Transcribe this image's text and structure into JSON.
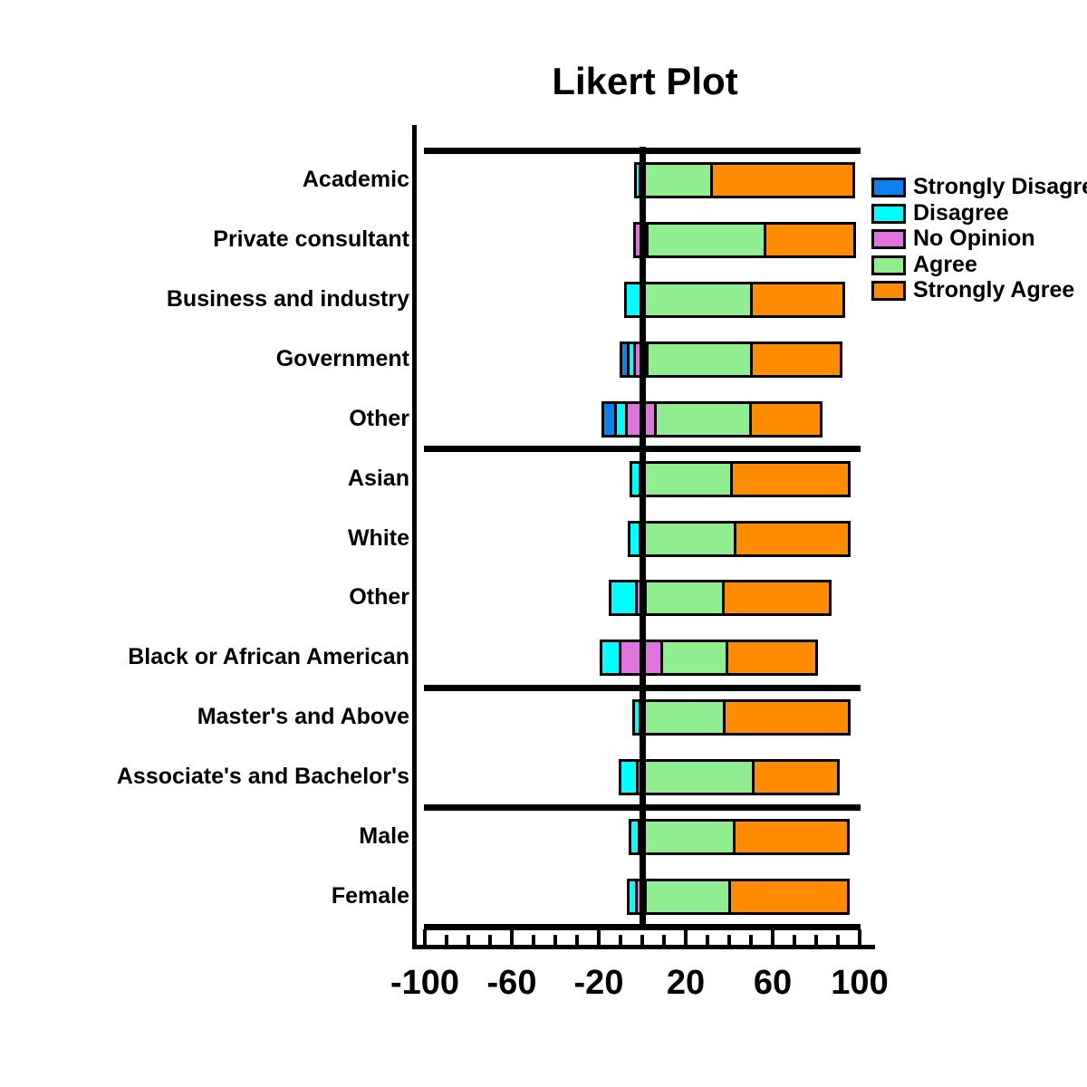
{
  "title": "Likert Plot",
  "legend": {
    "position": "right",
    "entries": [
      {
        "label": "Strongly Disagree",
        "color": "#0D80F2"
      },
      {
        "label": "Disagree",
        "color": "#00FFFF"
      },
      {
        "label": "No Opinion",
        "color": "#DF74DF"
      },
      {
        "label": "Agree",
        "color": "#90EE90"
      },
      {
        "label": "Strongly Agree",
        "color": "#FF8C00"
      }
    ]
  },
  "chart_data": {
    "type": "bar",
    "subtype": "diverging-stacked-likert",
    "title": "Likert Plot",
    "orientation": "horizontal",
    "neutral_straddles_zero": true,
    "grid": false,
    "xlim": [
      -105,
      107
    ],
    "x_major_ticks": [
      -100,
      -60,
      -20,
      20,
      60,
      100
    ],
    "x_minor_tick_step": 10,
    "x_tick_labels": [
      "-100",
      "-60",
      "-20",
      "20",
      "60",
      "100"
    ],
    "series_order": [
      "Strongly Disagree",
      "Disagree",
      "No Opinion",
      "Agree",
      "Strongly Agree"
    ],
    "series_colors": [
      "#0D80F2",
      "#00FFFF",
      "#DF74DF",
      "#90EE90",
      "#FF8C00"
    ],
    "groups": [
      {
        "rows": [
          {
            "label": "Academic",
            "values": [
              0,
              2,
              1,
              32,
              64
            ]
          },
          {
            "label": "Private consultant",
            "values": [
              0,
              0,
              6,
              54,
              40
            ]
          },
          {
            "label": "Business and industry",
            "values": [
              0,
              7,
              0,
              51,
              41
            ]
          },
          {
            "label": "Government",
            "values": [
              3,
              3,
              6,
              48,
              40
            ]
          },
          {
            "label": "Other",
            "values": [
              6,
              5,
              13,
              44,
              31
            ]
          }
        ]
      },
      {
        "rows": [
          {
            "label": "Asian",
            "values": [
              0,
              4,
              1,
              41,
              53
            ]
          },
          {
            "label": "White",
            "values": [
              0,
              5,
              1,
              43,
              51
            ]
          },
          {
            "label": "Other",
            "values": [
              0,
              12,
              4,
              36,
              48
            ]
          },
          {
            "label": "Black or African American",
            "values": [
              0,
              9,
              19,
              30,
              40
            ]
          }
        ]
      },
      {
        "rows": [
          {
            "label": "Master's and Above",
            "values": [
              0,
              3,
              1,
              38,
              56
            ]
          },
          {
            "label": "Associate's and Bachelor's",
            "values": [
              0,
              8,
              3,
              50,
              38
            ]
          }
        ]
      },
      {
        "rows": [
          {
            "label": "Male",
            "values": [
              0,
              4,
              2,
              42,
              51
            ]
          },
          {
            "label": "Female",
            "values": [
              0,
              4,
              4,
              39,
              53
            ]
          }
        ]
      }
    ]
  }
}
